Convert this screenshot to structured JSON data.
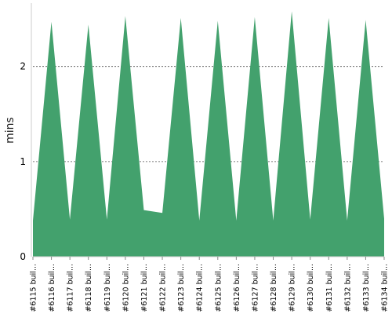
{
  "chart_data": {
    "type": "area",
    "ylabel": "mins",
    "categories": [
      "#6115 buil...",
      "#6116 buil...",
      "#6117 buil...",
      "#6118 buil...",
      "#6119 buil...",
      "#6120 buil...",
      "#6121 buil...",
      "#6122 buil...",
      "#6123 buil...",
      "#6124 buil...",
      "#6125 buil...",
      "#6126 buil...",
      "#6127 buil...",
      "#6128 buil...",
      "#6129 buil...",
      "#6130 buil...",
      "#6131 buil...",
      "#6132 buil...",
      "#6133 buil...",
      "#6134 buil..."
    ],
    "values": [
      0.38,
      2.47,
      0.39,
      2.44,
      0.39,
      2.53,
      0.49,
      0.46,
      2.51,
      0.38,
      2.48,
      0.38,
      2.52,
      0.38,
      2.58,
      0.39,
      2.51,
      0.38,
      2.49,
      0.4
    ],
    "ylim": [
      0,
      2.6
    ],
    "yticks": [
      0,
      1,
      2
    ],
    "grid": "horizontal-dashed",
    "fill_color": "#43a16d"
  }
}
